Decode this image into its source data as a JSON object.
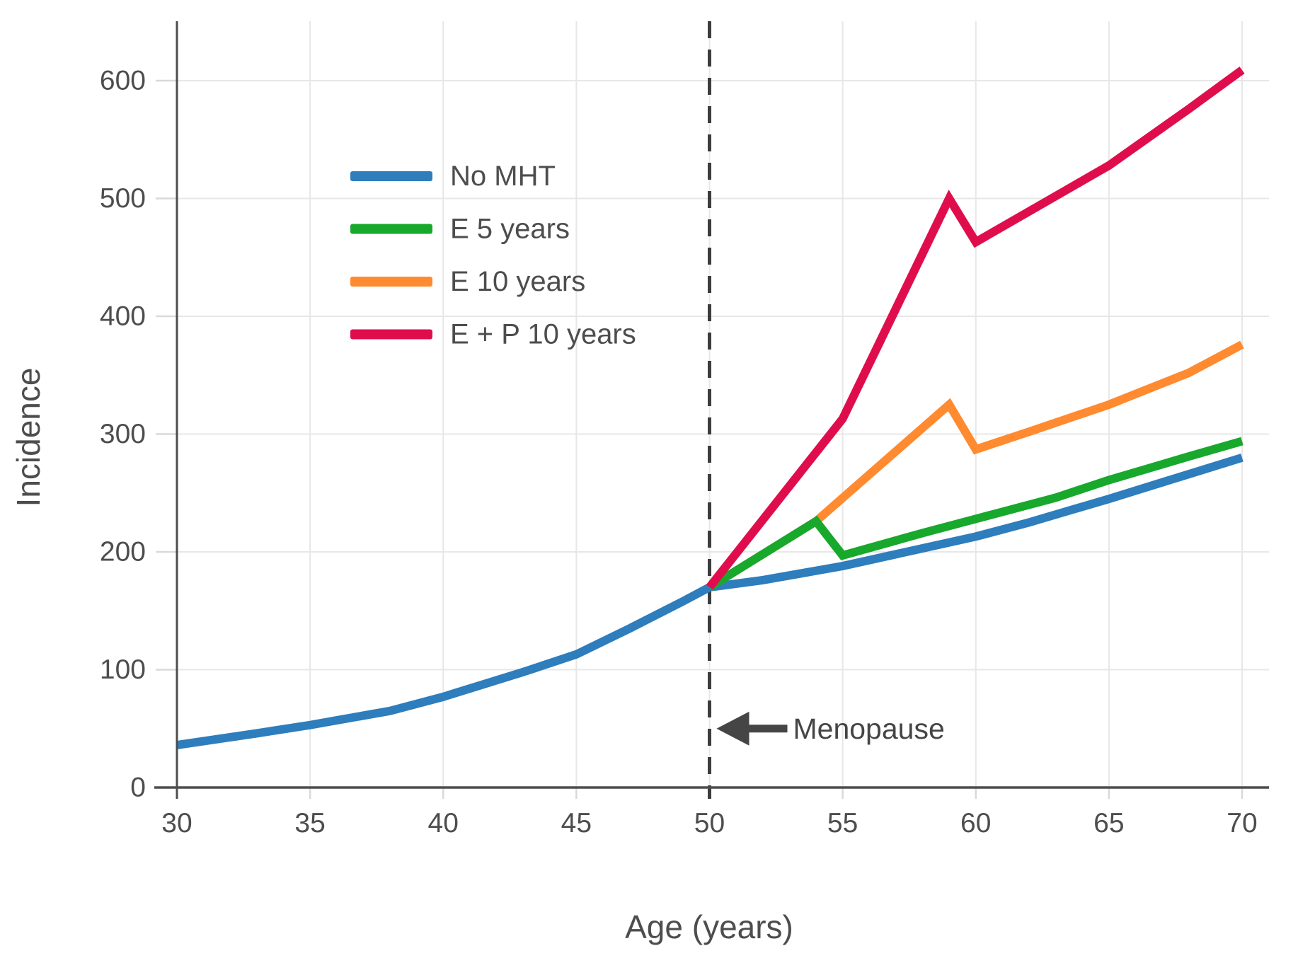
{
  "chart_data": {
    "type": "line",
    "title": "",
    "xlabel": "Age (years)",
    "ylabel": "Incidence",
    "xlim": [
      30,
      70
    ],
    "ylim": [
      0,
      650
    ],
    "xticks": [
      30,
      35,
      40,
      45,
      50,
      55,
      60,
      65,
      70
    ],
    "yticks": [
      0,
      100,
      200,
      300,
      400,
      500,
      600
    ],
    "grid": true,
    "legend_position": "upper-left-inside",
    "vline": {
      "x": 50,
      "style": "dashed",
      "color": "#3d3d3d"
    },
    "annotation": {
      "text": "Menopause",
      "arrow": "left",
      "x": 50,
      "y": 50
    },
    "series": [
      {
        "name": "No MHT",
        "color": "#2E7DBC",
        "points": [
          [
            30,
            36
          ],
          [
            33,
            46
          ],
          [
            35,
            53
          ],
          [
            38,
            65
          ],
          [
            40,
            77
          ],
          [
            43,
            98
          ],
          [
            45,
            113
          ],
          [
            47,
            135
          ],
          [
            49,
            158
          ],
          [
            50,
            170
          ],
          [
            52,
            176
          ],
          [
            55,
            188
          ],
          [
            58,
            203
          ],
          [
            60,
            213
          ],
          [
            62,
            225
          ],
          [
            65,
            245
          ],
          [
            68,
            266
          ],
          [
            70,
            280
          ]
        ]
      },
      {
        "name": "E 5 years",
        "color": "#17A82C",
        "points": [
          [
            50,
            170
          ],
          [
            54,
            226
          ],
          [
            55,
            197
          ],
          [
            58,
            216
          ],
          [
            60,
            228
          ],
          [
            63,
            246
          ],
          [
            65,
            261
          ],
          [
            68,
            281
          ],
          [
            70,
            294
          ]
        ]
      },
      {
        "name": "E 10 years",
        "color": "#FF8A30",
        "points": [
          [
            50,
            170
          ],
          [
            54,
            226
          ],
          [
            59,
            325
          ],
          [
            60,
            287
          ],
          [
            62,
            302
          ],
          [
            65,
            325
          ],
          [
            68,
            352
          ],
          [
            70,
            376
          ]
        ]
      },
      {
        "name": "E + P 10 years",
        "color": "#E00D4D",
        "points": [
          [
            50,
            170
          ],
          [
            55,
            313
          ],
          [
            59,
            500
          ],
          [
            60,
            463
          ],
          [
            62,
            489
          ],
          [
            65,
            528
          ],
          [
            68,
            576
          ],
          [
            70,
            609
          ]
        ]
      }
    ]
  },
  "colors": {
    "axis": "#4d4d4d",
    "grid": "#e7e7e7",
    "light_tick": "#d9d9d9",
    "tick_label": "#4d4d4d",
    "annotation": "#454545",
    "background": "#ffffff"
  }
}
